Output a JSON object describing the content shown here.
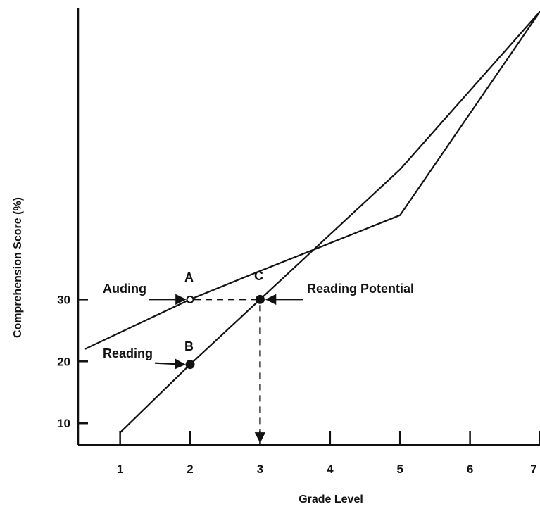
{
  "chart_data": {
    "type": "line",
    "title": "",
    "xlabel": "Grade Level",
    "ylabel": "Comprehension Score (%)",
    "x_ticks": [
      "1",
      "2",
      "3",
      "4",
      "5",
      "6",
      "7"
    ],
    "y_ticks": [
      "10",
      "20",
      "30"
    ],
    "xlim": [
      0.4,
      7
    ],
    "ylim": [
      6.5,
      77
    ],
    "grid": false,
    "series": [
      {
        "name": "Auding",
        "x": [
          0.5,
          2,
          3,
          5,
          7
        ],
        "y": [
          22,
          30,
          34.6,
          43.6,
          76.5
        ]
      },
      {
        "name": "Reading",
        "x": [
          1,
          2,
          3,
          5,
          7
        ],
        "y": [
          8.5,
          19.5,
          30.0,
          51,
          76.5
        ]
      }
    ],
    "points": [
      {
        "label": "A",
        "x": 2,
        "y": 30,
        "marker": "open"
      },
      {
        "label": "B",
        "x": 2,
        "y": 19.5,
        "marker": "filled"
      },
      {
        "label": "C",
        "x": 3,
        "y": 30,
        "marker": "filled"
      }
    ],
    "annotations": [
      {
        "text": "Auding",
        "points_to": "A"
      },
      {
        "text": "Reading",
        "points_to": "B"
      },
      {
        "text": "Reading Potential",
        "points_to": "C"
      }
    ]
  }
}
